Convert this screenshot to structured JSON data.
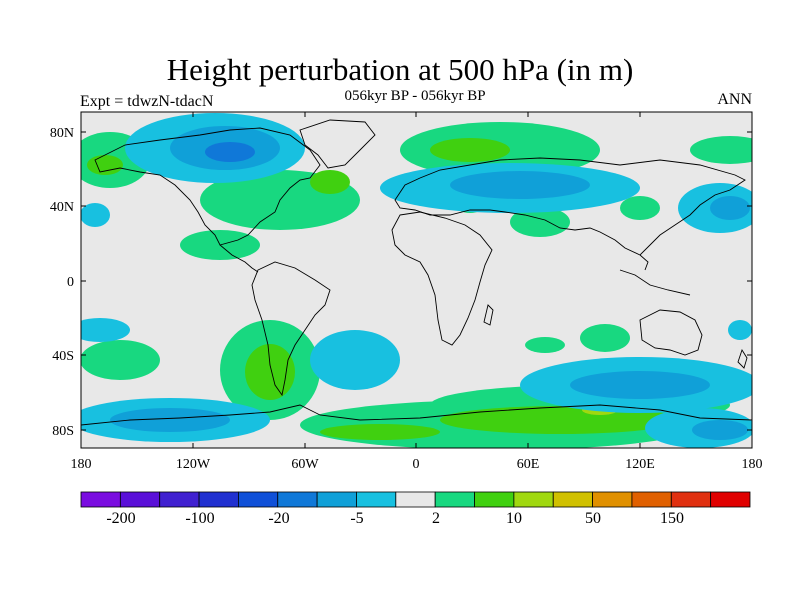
{
  "header": {
    "title": "Height perturbation at 500 hPa (in m)",
    "subtitle": "056kyr BP - 056kyr BP",
    "left_label": "Expt = tdwzN-tdacN",
    "right_label": "ANN"
  },
  "map": {
    "background_color": "#e8e8e8",
    "lon_ticks": [
      "180",
      "120W",
      "60W",
      "0",
      "60E",
      "120E",
      "180"
    ],
    "lat_ticks": [
      "80N",
      "40N",
      "0",
      "40S",
      "80S"
    ]
  },
  "colorbar": {
    "colors": [
      "#7a0de0",
      "#5a10d8",
      "#4020d0",
      "#2030d0",
      "#1050d8",
      "#1078d8",
      "#10a0d8",
      "#18c0e0",
      "#e8e8e8",
      "#18d880",
      "#40d010",
      "#a0d810",
      "#d0c000",
      "#e09000",
      "#e06000",
      "#e03010",
      "#e00000"
    ],
    "labels": [
      "-200",
      "-100",
      "-20",
      "-5",
      "2",
      "10",
      "50",
      "150"
    ]
  }
}
